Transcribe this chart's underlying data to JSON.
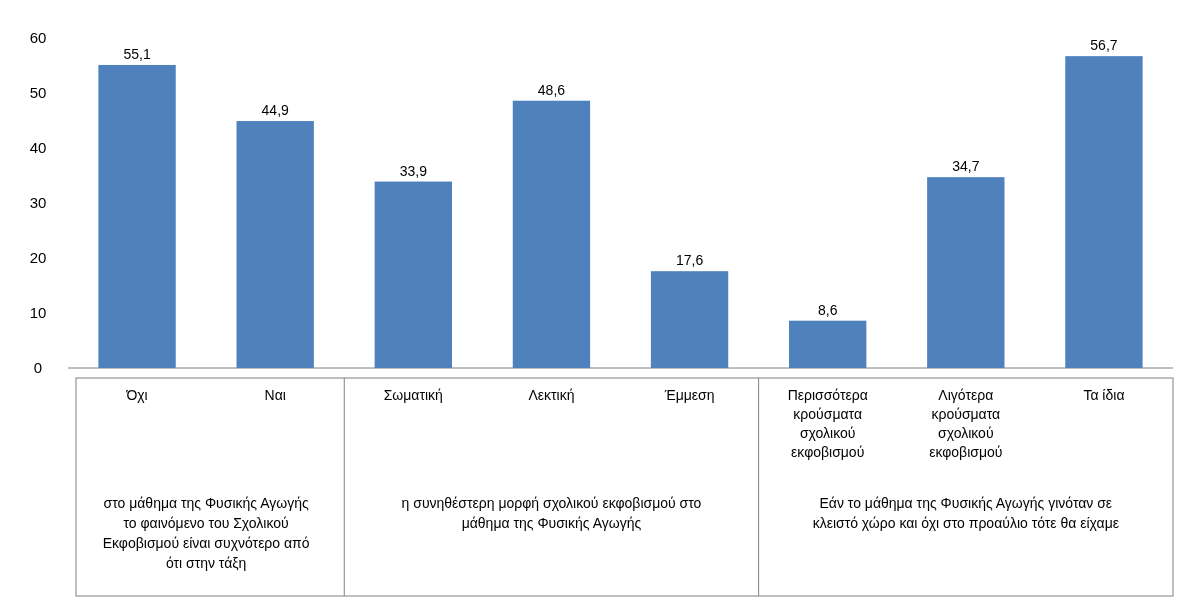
{
  "chart_data": {
    "type": "bar",
    "categories": [
      "Όχι",
      "Ναι",
      "Σωματική",
      "Λεκτική",
      "Έμμεση",
      "Περισσότερα κρούσματα σχολικού εκφοβισμού",
      "Λιγότερα κρούσματα σχολικού εκφοβισμού",
      "Τα ίδια"
    ],
    "values": [
      55.1,
      44.9,
      33.9,
      48.6,
      17.6,
      8.6,
      34.7,
      56.7
    ],
    "value_labels": [
      "55,1",
      "44,9",
      "33,9",
      "48,6",
      "17,6",
      "8,6",
      "34,7",
      "56,7"
    ],
    "color": "#4f81bd",
    "ylim": [
      0,
      60
    ],
    "yticks": [
      0,
      10,
      20,
      30,
      40,
      50,
      60
    ],
    "grid": false,
    "annotations": [
      "στο μάθημα της Φυσικής Αγωγής το φαινόμενο του Σχολικού Εκφοβισμού είναι συχνότερο από ότι στην τάξη",
      "η συνηθέστερη μορφή σχολικού εκφοβισμού στο μάθημα της Φυσικής Αγωγής",
      "Εάν το μάθημα της Φυσικής Αγωγής γινόταν σε κλειστό χώρο και όχι στο προαύλιο τότε θα είχαμε"
    ]
  }
}
